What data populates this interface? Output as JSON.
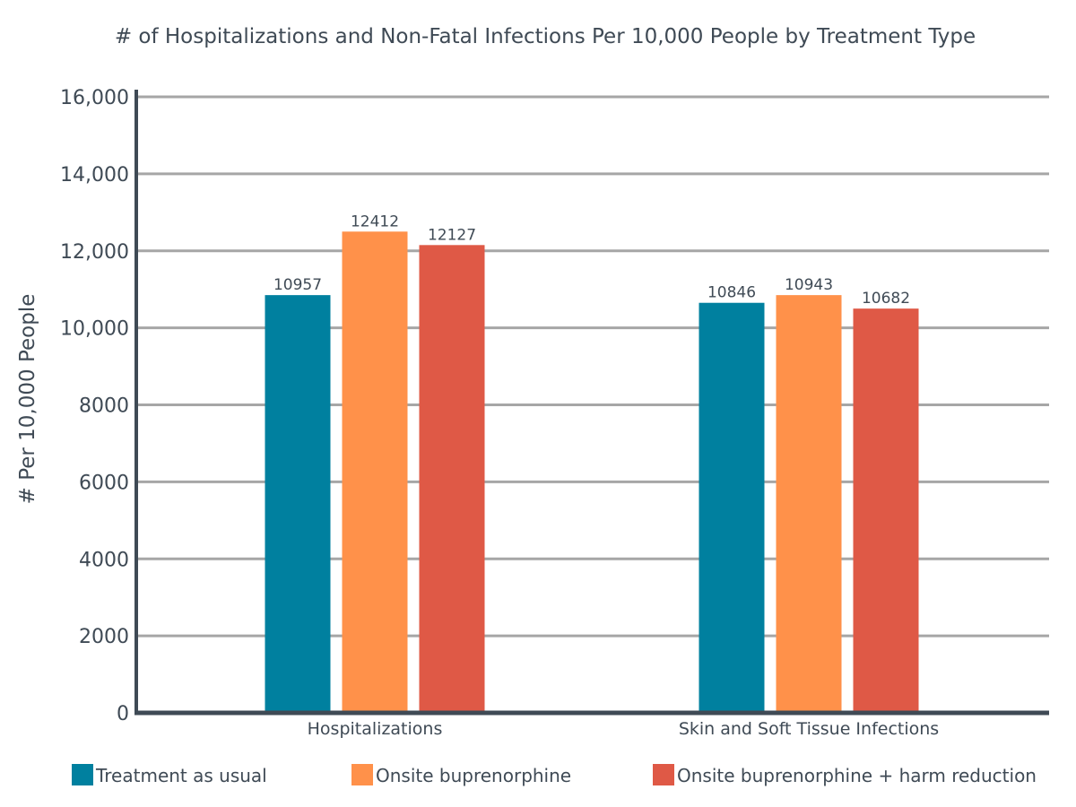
{
  "chart_data": {
    "type": "bar",
    "title": "# of Hospitalizations and Non-Fatal Infections Per 10,000 People by Treatment Type",
    "xlabel": "",
    "ylabel": "# Per 10,000 People",
    "categories": [
      "Hospitalizations",
      "Skin and Soft Tissue Infections"
    ],
    "series": [
      {
        "name": "Treatment as usual",
        "color": "#00809f",
        "values": [
          10957,
          10846
        ]
      },
      {
        "name": "Onsite buprenorphine",
        "color": "#ff914a",
        "values": [
          12412,
          10943
        ]
      },
      {
        "name": "Onsite buprenorphine + harm reduction",
        "color": "#df5946",
        "values": [
          12127,
          10682
        ]
      }
    ],
    "bar_heights_as_drawn": [
      [
        10850,
        10650
      ],
      [
        12500,
        10850
      ],
      [
        12150,
        10500
      ]
    ],
    "ylim": [
      0,
      16000
    ],
    "yticks": [
      0,
      2000,
      4000,
      6000,
      8000,
      10000,
      12000,
      14000,
      16000
    ],
    "ytick_labels": [
      "0",
      "2000",
      "4000",
      "6000",
      "8000",
      "10,000",
      "12,000",
      "14,000",
      "16,000"
    ],
    "grid": true,
    "legend_position": "bottom"
  }
}
